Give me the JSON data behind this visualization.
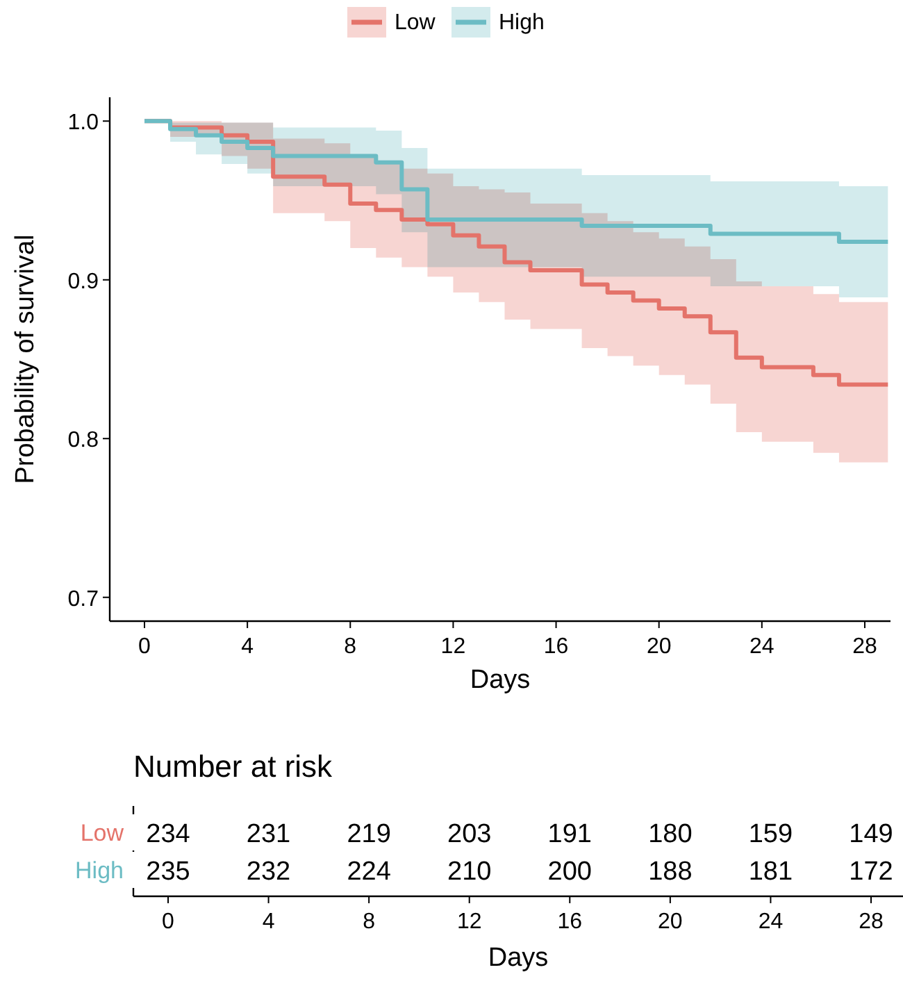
{
  "chart_data": [
    {
      "type": "step",
      "ylabel": "Probability of survival",
      "xlabel": "Days",
      "xlim": [
        -1.35,
        29
      ],
      "xticks": [
        0,
        4,
        8,
        12,
        16,
        20,
        24,
        28
      ],
      "ylim": [
        0.685,
        1.015
      ],
      "yticks": [
        0.7,
        0.8,
        0.9,
        {
          "value": 1,
          "label": "1.0"
        }
      ],
      "legend": "top",
      "grid": false,
      "series": [
        {
          "name": "Low",
          "color": "#e4736a",
          "x": [
            0,
            1,
            3,
            4,
            5,
            7,
            8,
            9,
            10,
            11,
            12,
            13,
            14,
            15,
            17,
            18,
            19,
            20,
            21,
            22,
            23,
            24,
            26,
            27,
            28.9
          ],
          "values": [
            1,
            0.996,
            0.991,
            0.987,
            0.965,
            0.96,
            0.948,
            0.944,
            0.938,
            0.935,
            0.928,
            0.921,
            0.911,
            0.906,
            0.897,
            0.892,
            0.887,
            0.882,
            0.877,
            0.867,
            0.851,
            0.845,
            0.84,
            0.834,
            0.834
          ],
          "lower": [
            1,
            0.99,
            0.978,
            0.97,
            0.942,
            0.937,
            0.92,
            0.914,
            0.908,
            0.902,
            0.892,
            0.886,
            0.875,
            0.869,
            0.857,
            0.852,
            0.846,
            0.84,
            0.834,
            0.822,
            0.804,
            0.798,
            0.791,
            0.785,
            0.785
          ],
          "upper": [
            1,
            1,
            0.999,
            0.999,
            0.989,
            0.986,
            0.977,
            0.975,
            0.97,
            0.967,
            0.959,
            0.957,
            0.955,
            0.948,
            0.942,
            0.937,
            0.93,
            0.926,
            0.921,
            0.913,
            0.899,
            0.896,
            0.891,
            0.886,
            0.886
          ]
        },
        {
          "name": "High",
          "color": "#6cbcc4",
          "x": [
            0,
            1,
            2,
            3,
            4,
            5,
            9,
            10,
            11,
            17,
            22,
            27,
            28.9
          ],
          "values": [
            1,
            0.995,
            0.991,
            0.987,
            0.983,
            0.978,
            0.974,
            0.957,
            0.938,
            0.934,
            0.929,
            0.924,
            0.924
          ],
          "lower": [
            1,
            0.987,
            0.979,
            0.973,
            0.967,
            0.959,
            0.954,
            0.93,
            0.908,
            0.902,
            0.896,
            0.889,
            0.889
          ],
          "upper": [
            1,
            0.999,
            0.999,
            0.999,
            0.999,
            0.996,
            0.994,
            0.983,
            0.97,
            0.966,
            0.962,
            0.959,
            0.959
          ]
        }
      ]
    },
    {
      "type": "heatmap",
      "title": "Number at risk",
      "xlabel": "Days",
      "categories": [
        "0",
        "4",
        "8",
        "12",
        "16",
        "20",
        "24",
        "28"
      ],
      "y_categories": [
        "Low",
        "High"
      ],
      "colors": [
        "#e4736a",
        "#6cbcc4"
      ],
      "data_labels": true,
      "cells": [
        [
          234,
          231,
          219,
          203,
          191,
          180,
          159,
          149
        ],
        [
          235,
          232,
          224,
          210,
          200,
          188,
          181,
          172
        ]
      ]
    }
  ]
}
